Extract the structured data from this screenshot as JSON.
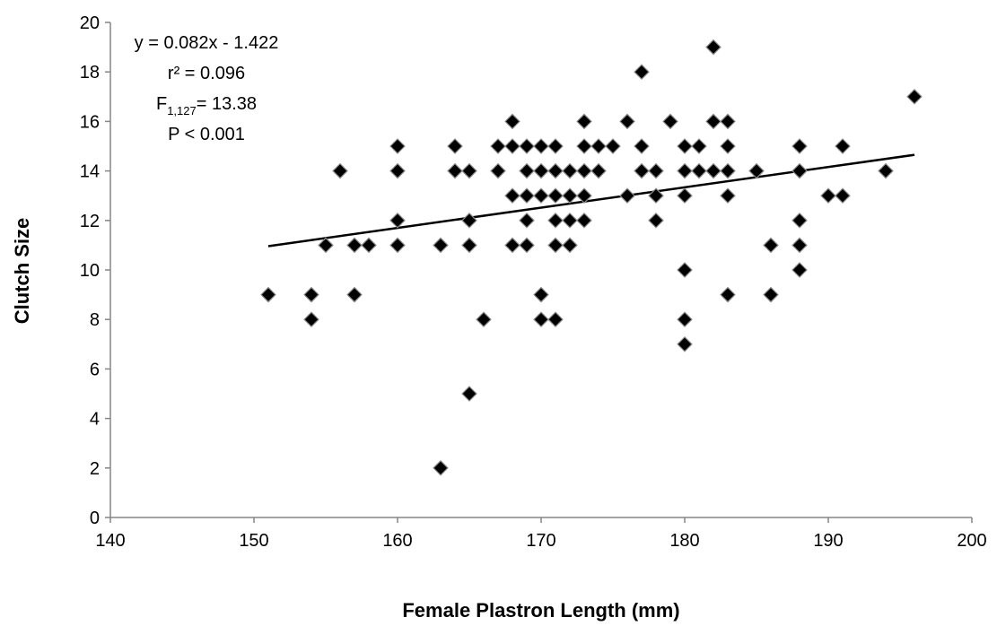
{
  "chart_data": {
    "type": "scatter",
    "xlabel": "Female Plastron Length (mm)",
    "ylabel": "Clutch Size",
    "xlim": [
      140,
      200
    ],
    "ylim": [
      0,
      20
    ],
    "xticks": [
      140,
      150,
      160,
      170,
      180,
      190,
      200
    ],
    "yticks": [
      0,
      2,
      4,
      6,
      8,
      10,
      12,
      14,
      16,
      18,
      20
    ],
    "grid": false,
    "legend": "none",
    "marker": "diamond",
    "marker_color": "#000000",
    "trendline": {
      "slope": 0.082,
      "intercept": -1.422,
      "x_range": [
        151,
        196
      ]
    },
    "annotations": {
      "equation": "y = 0.082x - 1.422",
      "r2": "r² = 0.096",
      "f_prefix": "F",
      "f_subscript": "1,127",
      "f_value": "= 13.38",
      "p": "P < 0.001"
    },
    "points": [
      [
        151,
        9
      ],
      [
        154,
        9
      ],
      [
        154,
        8
      ],
      [
        155,
        11
      ],
      [
        156,
        14
      ],
      [
        157,
        11
      ],
      [
        157,
        9
      ],
      [
        158,
        11
      ],
      [
        160,
        15
      ],
      [
        160,
        14
      ],
      [
        160,
        12
      ],
      [
        160,
        11
      ],
      [
        163,
        11
      ],
      [
        163,
        2
      ],
      [
        164,
        15
      ],
      [
        164,
        14
      ],
      [
        165,
        14
      ],
      [
        165,
        12
      ],
      [
        165,
        11
      ],
      [
        165,
        5
      ],
      [
        166,
        8
      ],
      [
        167,
        15
      ],
      [
        167,
        14
      ],
      [
        168,
        16
      ],
      [
        168,
        15
      ],
      [
        168,
        13
      ],
      [
        168,
        11
      ],
      [
        169,
        15
      ],
      [
        169,
        14
      ],
      [
        169,
        13
      ],
      [
        169,
        12
      ],
      [
        169,
        11
      ],
      [
        170,
        15
      ],
      [
        170,
        14
      ],
      [
        170,
        13
      ],
      [
        170,
        9
      ],
      [
        170,
        8
      ],
      [
        171,
        15
      ],
      [
        171,
        14
      ],
      [
        171,
        13
      ],
      [
        171,
        12
      ],
      [
        171,
        11
      ],
      [
        171,
        8
      ],
      [
        172,
        14
      ],
      [
        172,
        13
      ],
      [
        172,
        12
      ],
      [
        172,
        11
      ],
      [
        173,
        16
      ],
      [
        173,
        15
      ],
      [
        173,
        14
      ],
      [
        173,
        13
      ],
      [
        173,
        12
      ],
      [
        174,
        15
      ],
      [
        174,
        14
      ],
      [
        175,
        15
      ],
      [
        176,
        16
      ],
      [
        176,
        13
      ],
      [
        177,
        18
      ],
      [
        177,
        15
      ],
      [
        177,
        14
      ],
      [
        178,
        14
      ],
      [
        178,
        13
      ],
      [
        178,
        12
      ],
      [
        179,
        16
      ],
      [
        180,
        15
      ],
      [
        180,
        14
      ],
      [
        180,
        13
      ],
      [
        180,
        10
      ],
      [
        180,
        8
      ],
      [
        180,
        7
      ],
      [
        181,
        15
      ],
      [
        181,
        14
      ],
      [
        182,
        19
      ],
      [
        182,
        16
      ],
      [
        182,
        14
      ],
      [
        183,
        16
      ],
      [
        183,
        15
      ],
      [
        183,
        14
      ],
      [
        183,
        13
      ],
      [
        183,
        9
      ],
      [
        185,
        14
      ],
      [
        186,
        11
      ],
      [
        186,
        9
      ],
      [
        188,
        15
      ],
      [
        188,
        14
      ],
      [
        188,
        12
      ],
      [
        188,
        11
      ],
      [
        188,
        10
      ],
      [
        190,
        13
      ],
      [
        191,
        15
      ],
      [
        191,
        13
      ],
      [
        194,
        14
      ],
      [
        196,
        17
      ]
    ]
  }
}
